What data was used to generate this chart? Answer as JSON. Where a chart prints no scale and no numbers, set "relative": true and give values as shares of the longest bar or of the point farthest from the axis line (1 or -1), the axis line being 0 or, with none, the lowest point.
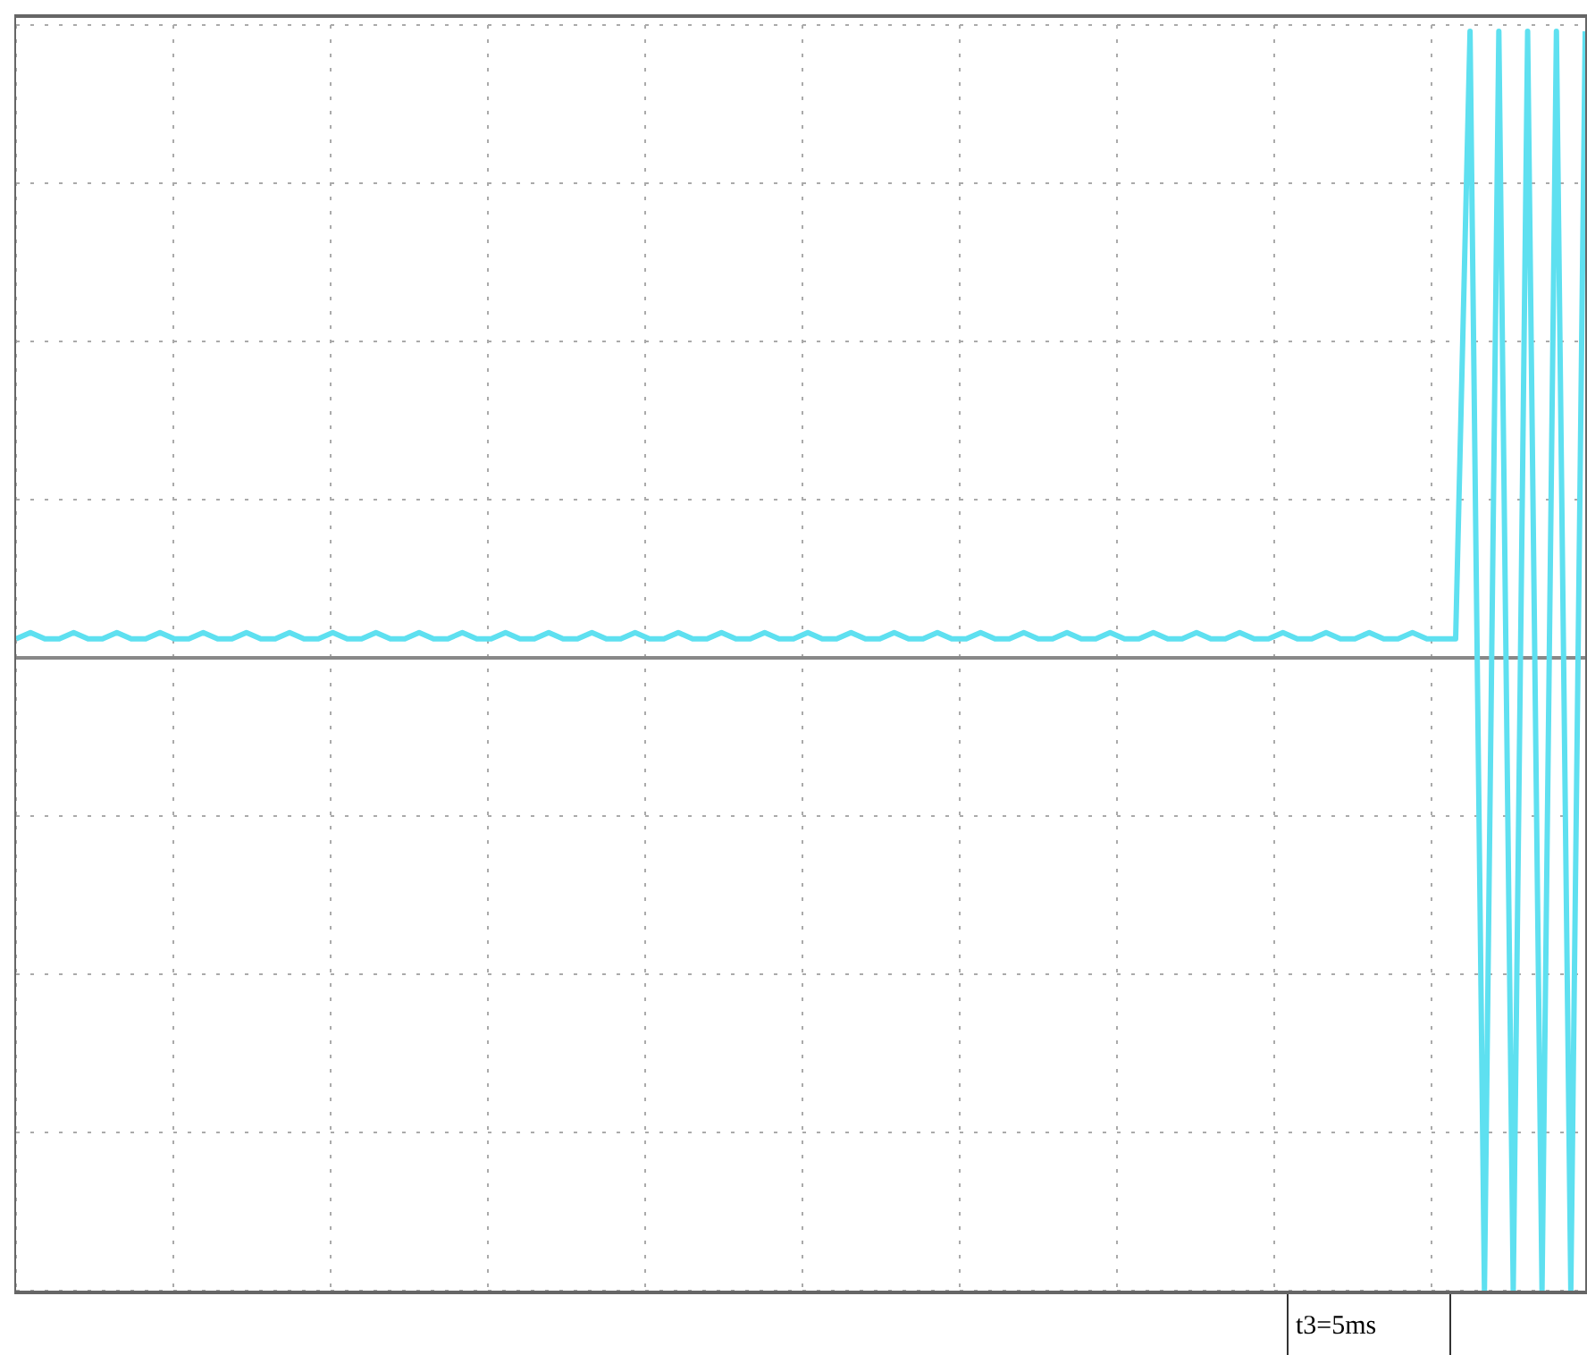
{
  "chart_data": {
    "type": "line",
    "relative": true,
    "grid": true,
    "marker": "none",
    "line_style": "solid",
    "categories": [
      null,
      null,
      null,
      null,
      null,
      null,
      null,
      null,
      null,
      null,
      null,
      null,
      null,
      null,
      null,
      null,
      null,
      null,
      null,
      null,
      null,
      null,
      null,
      null,
      null,
      null,
      null,
      null,
      null,
      null,
      null,
      null,
      null,
      null,
      null,
      null,
      null,
      null,
      null,
      null,
      null,
      null,
      null,
      null,
      null,
      null,
      null,
      null,
      null,
      null,
      null,
      null,
      null,
      null,
      null,
      null,
      null,
      null,
      null,
      null,
      null,
      null,
      null,
      null,
      null,
      null,
      null,
      null,
      null,
      null,
      null,
      null,
      null,
      null,
      null,
      null,
      null,
      null,
      null,
      null,
      null,
      null,
      null,
      null,
      null,
      null,
      null,
      null,
      null,
      null,
      null,
      null,
      null,
      null,
      null,
      null,
      null,
      null,
      null,
      null,
      null,
      null,
      null,
      null,
      null,
      null,
      null,
      null,
      null,
      null
    ],
    "series": [
      {
        "color": "#5ee0f0",
        "values": [
          0.03,
          0.04,
          0.03,
          0.03,
          0.04,
          0.03,
          0.03,
          0.04,
          0.03,
          0.03,
          0.04,
          0.03,
          0.03,
          0.04,
          0.03,
          0.03,
          0.04,
          0.03,
          0.03,
          0.04,
          0.03,
          0.03,
          0.04,
          0.03,
          0.03,
          0.04,
          0.03,
          0.03,
          0.04,
          0.03,
          0.03,
          0.04,
          0.03,
          0.03,
          0.04,
          0.03,
          0.03,
          0.04,
          0.03,
          0.03,
          0.04,
          0.03,
          0.03,
          0.04,
          0.03,
          0.03,
          0.04,
          0.03,
          0.03,
          0.04,
          0.03,
          0.03,
          0.04,
          0.03,
          0.03,
          0.04,
          0.03,
          0.03,
          0.04,
          0.03,
          0.03,
          0.04,
          0.03,
          0.03,
          0.04,
          0.03,
          0.03,
          0.04,
          0.03,
          0.03,
          0.04,
          0.03,
          0.03,
          0.04,
          0.03,
          0.03,
          0.04,
          0.03,
          0.03,
          0.04,
          0.03,
          0.03,
          0.04,
          0.03,
          0.03,
          0.04,
          0.03,
          0.03,
          0.04,
          0.03,
          0.03,
          0.04,
          0.03,
          0.03,
          0.04,
          0.03,
          0.03,
          0.04,
          0.03,
          0.03,
          0.03,
          0.99,
          -1,
          0.99,
          -1,
          0.99,
          -1,
          0.99,
          -1,
          0.99
        ]
      }
    ],
    "annotations": [
      "t3=5ms"
    ]
  }
}
